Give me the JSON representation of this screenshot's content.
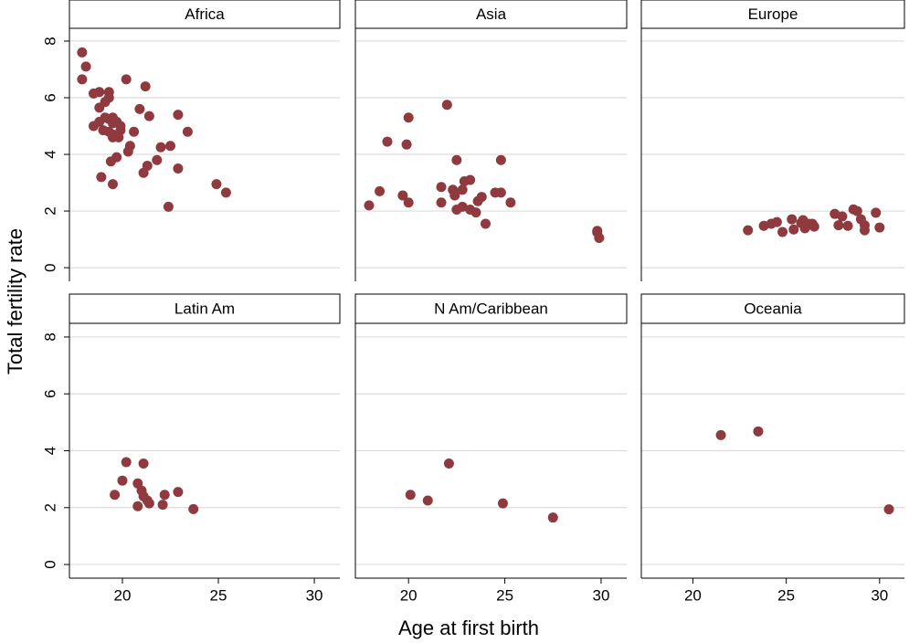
{
  "chart_data": [
    {
      "type": "scatter",
      "title": "Africa",
      "color": "#8e3a3f",
      "xlim": [
        17.24,
        31.33
      ],
      "ylim": [
        -0.48,
        8.45
      ],
      "yticks": [
        0,
        2,
        4,
        6,
        8
      ],
      "grid": true,
      "x": [
        17.9,
        18.1,
        17.9,
        18.5,
        18.8,
        19.3,
        19.3,
        20.2,
        21.2,
        18.8,
        19.1,
        18.5,
        18.8,
        19.1,
        19.3,
        19.5,
        19.5,
        19.7,
        19.9,
        19.9,
        19.0,
        19.3,
        19.5,
        19.5,
        19.8,
        20.9,
        21.4,
        22.9,
        20.6,
        23.4,
        20.4,
        20.3,
        19.7,
        19.4,
        22.0,
        22.5,
        21.8,
        21.3,
        21.1,
        22.9,
        18.9,
        19.5,
        24.9,
        25.4,
        22.4
      ],
      "y": [
        7.6,
        7.1,
        6.65,
        6.15,
        6.2,
        6.2,
        6.0,
        6.65,
        6.4,
        5.65,
        5.85,
        5.0,
        5.15,
        5.3,
        5.25,
        5.3,
        5.1,
        5.15,
        5.0,
        4.85,
        4.85,
        4.8,
        4.7,
        4.6,
        4.6,
        5.6,
        5.35,
        5.4,
        4.8,
        4.8,
        4.3,
        4.1,
        3.9,
        3.75,
        4.25,
        4.3,
        3.8,
        3.6,
        3.35,
        3.5,
        3.2,
        2.95,
        2.95,
        2.65,
        2.15
      ]
    },
    {
      "type": "scatter",
      "title": "Asia",
      "color": "#8e3a3f",
      "xlim": [
        17.24,
        31.33
      ],
      "ylim": [
        -0.48,
        8.45
      ],
      "yticks": [
        0,
        2,
        4,
        6,
        8
      ],
      "grid": true,
      "x": [
        17.95,
        18.5,
        18.9,
        20.0,
        19.9,
        22.0,
        19.7,
        20.0,
        21.7,
        21.7,
        22.3,
        22.4,
        22.8,
        22.5,
        22.9,
        23.2,
        22.5,
        22.8,
        23.2,
        23.5,
        23.6,
        23.8,
        24.0,
        24.5,
        24.8,
        24.8,
        25.3,
        29.8,
        29.9,
        29.8
      ],
      "y": [
        2.2,
        2.7,
        4.45,
        5.3,
        4.35,
        5.75,
        2.55,
        2.3,
        2.85,
        2.3,
        2.75,
        2.55,
        2.75,
        3.8,
        3.05,
        3.1,
        2.05,
        2.15,
        2.05,
        1.95,
        2.35,
        2.5,
        1.55,
        2.65,
        2.65,
        3.8,
        2.3,
        1.3,
        1.05,
        1.25
      ]
    },
    {
      "type": "scatter",
      "title": "Europe",
      "color": "#8e3a3f",
      "xlim": [
        17.24,
        31.33
      ],
      "ylim": [
        -0.48,
        8.45
      ],
      "yticks": [
        0,
        2,
        4,
        6,
        8
      ],
      "grid": true,
      "x": [
        22.95,
        23.8,
        24.2,
        24.5,
        24.8,
        25.3,
        25.4,
        25.8,
        25.9,
        26.0,
        26.2,
        26.4,
        26.5,
        27.6,
        27.8,
        28.0,
        28.3,
        28.6,
        28.8,
        29.0,
        29.2,
        29.2,
        29.8,
        30.0
      ],
      "y": [
        1.32,
        1.48,
        1.55,
        1.61,
        1.26,
        1.71,
        1.35,
        1.58,
        1.68,
        1.39,
        1.55,
        1.55,
        1.45,
        1.9,
        1.5,
        1.81,
        1.48,
        2.06,
        2.0,
        1.71,
        1.32,
        1.5,
        1.94,
        1.42
      ]
    },
    {
      "type": "scatter",
      "title": "Latin Am",
      "color": "#8e3a3f",
      "xlim": [
        17.24,
        31.33
      ],
      "ylim": [
        -0.48,
        8.48
      ],
      "xticks": [
        20,
        25,
        30
      ],
      "yticks": [
        0,
        2,
        4,
        6,
        8
      ],
      "grid": true,
      "x": [
        19.6,
        20.2,
        20.0,
        20.8,
        20.8,
        21.1,
        21.0,
        21.1,
        21.3,
        21.4,
        22.1,
        22.2,
        22.9,
        23.7
      ],
      "y": [
        2.45,
        3.6,
        2.95,
        2.85,
        2.05,
        3.55,
        2.6,
        2.4,
        2.25,
        2.15,
        2.1,
        2.45,
        2.55,
        1.95
      ]
    },
    {
      "type": "scatter",
      "title": "N Am/Caribbean",
      "color": "#8e3a3f",
      "xlim": [
        17.24,
        31.33
      ],
      "ylim": [
        -0.48,
        8.48
      ],
      "xticks": [
        20,
        25,
        30
      ],
      "yticks": [
        0,
        2,
        4,
        6,
        8
      ],
      "grid": true,
      "x": [
        20.1,
        21.0,
        22.1,
        24.9,
        27.5
      ],
      "y": [
        2.45,
        2.25,
        3.55,
        2.15,
        1.65
      ]
    },
    {
      "type": "scatter",
      "title": "Oceania",
      "color": "#8e3a3f",
      "xlim": [
        17.24,
        31.33
      ],
      "ylim": [
        -0.48,
        8.48
      ],
      "xticks": [
        20,
        25,
        30
      ],
      "yticks": [
        0,
        2,
        4,
        6,
        8
      ],
      "grid": true,
      "x": [
        21.5,
        23.5,
        30.5
      ],
      "y": [
        4.55,
        4.68,
        1.94
      ]
    }
  ],
  "xlabel": "Age at first birth",
  "ylabel": "Total fertility rate"
}
